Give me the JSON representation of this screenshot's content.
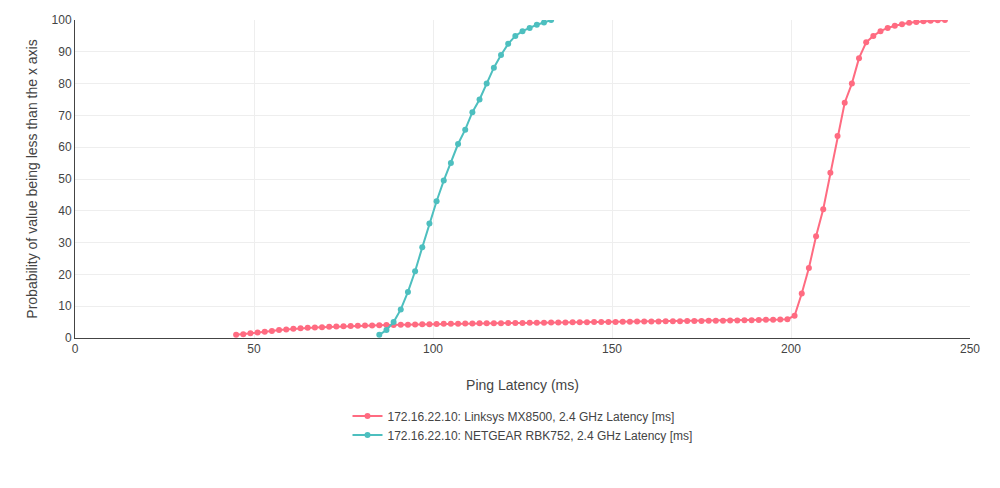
{
  "chart_data": {
    "type": "line",
    "xlabel": "Ping Latency (ms)",
    "ylabel": "Probability of value being less than the x axis",
    "xlim": [
      0,
      250
    ],
    "ylim": [
      0,
      100
    ],
    "xticks": [
      0,
      50,
      100,
      150,
      200,
      250
    ],
    "yticks": [
      0,
      10,
      20,
      30,
      40,
      50,
      60,
      70,
      80,
      90,
      100
    ],
    "grid": true,
    "legend": "bottom",
    "marker": "circle",
    "series": [
      {
        "name": "172.16.22.10: Linksys MX8500, 2.4 GHz Latency [ms]",
        "color": "#ff6b81",
        "x": [
          45,
          47,
          49,
          51,
          53,
          55,
          57,
          59,
          61,
          63,
          65,
          67,
          69,
          71,
          73,
          75,
          77,
          79,
          81,
          83,
          85,
          87,
          89,
          91,
          93,
          95,
          97,
          99,
          101,
          103,
          105,
          107,
          109,
          111,
          113,
          115,
          117,
          119,
          121,
          123,
          125,
          127,
          129,
          131,
          133,
          135,
          137,
          139,
          141,
          143,
          145,
          147,
          149,
          151,
          153,
          155,
          157,
          159,
          161,
          163,
          165,
          167,
          169,
          171,
          173,
          175,
          177,
          179,
          181,
          183,
          185,
          187,
          189,
          191,
          193,
          195,
          197,
          199,
          201,
          203,
          205,
          207,
          209,
          211,
          213,
          215,
          217,
          219,
          221,
          223,
          225,
          227,
          229,
          231,
          233,
          235,
          237,
          239,
          241,
          243
        ],
        "values": [
          1.0,
          1.2,
          1.5,
          1.7,
          2.0,
          2.2,
          2.5,
          2.7,
          2.9,
          3.1,
          3.2,
          3.3,
          3.4,
          3.5,
          3.6,
          3.7,
          3.8,
          3.85,
          3.9,
          3.95,
          4.0,
          4.05,
          4.1,
          4.15,
          4.2,
          4.25,
          4.3,
          4.35,
          4.4,
          4.45,
          4.5,
          4.52,
          4.55,
          4.57,
          4.6,
          4.62,
          4.65,
          4.67,
          4.7,
          4.72,
          4.75,
          4.77,
          4.8,
          4.82,
          4.85,
          4.87,
          4.9,
          4.92,
          4.95,
          4.97,
          5.0,
          5.02,
          5.05,
          5.07,
          5.1,
          5.12,
          5.15,
          5.17,
          5.2,
          5.22,
          5.25,
          5.27,
          5.3,
          5.32,
          5.35,
          5.37,
          5.4,
          5.42,
          5.45,
          5.47,
          5.5,
          5.55,
          5.6,
          5.65,
          5.7,
          5.75,
          5.8,
          5.9,
          7.0,
          14.0,
          22.0,
          32.0,
          40.5,
          52.0,
          63.5,
          74.0,
          80.0,
          88.0,
          93.0,
          95.0,
          96.5,
          97.5,
          98.2,
          98.7,
          99.1,
          99.4,
          99.6,
          99.8,
          99.9,
          100.0
        ]
      },
      {
        "name": "172.16.22.10: NETGEAR RBK752, 2.4 GHz Latency [ms]",
        "color": "#4dbfbf",
        "x": [
          85,
          87,
          89,
          91,
          93,
          95,
          97,
          99,
          101,
          103,
          105,
          107,
          109,
          111,
          113,
          115,
          117,
          119,
          121,
          123,
          125,
          127,
          129,
          131,
          133
        ],
        "values": [
          1.0,
          2.5,
          5.0,
          9.0,
          14.5,
          21.0,
          28.5,
          36.0,
          43.0,
          49.5,
          55.0,
          61.0,
          65.5,
          71.0,
          75.0,
          80.0,
          85.0,
          89.0,
          92.5,
          95.0,
          96.5,
          97.5,
          98.5,
          99.2,
          100.0
        ]
      }
    ]
  }
}
